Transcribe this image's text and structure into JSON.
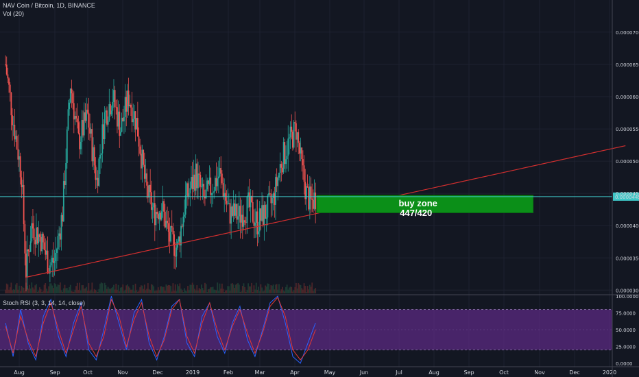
{
  "header": {
    "title": "NAV Coin / Bitcoin, 1D, BINANCE",
    "volume_indicator": "Vol (20)",
    "oscillator_label": "Stoch RSI (3, 3, 14, 14, close)"
  },
  "colors": {
    "background": "#131722",
    "up": "#26a69a",
    "down": "#ef5350",
    "trendline": "#d32f2f",
    "current_price_line": "#3ec6c6",
    "buy_zone": "#0b8f18",
    "stoch_band": "#5b2a82",
    "stoch_k": "#2962ff",
    "stoch_d": "#e53935"
  },
  "chart_data": [
    {
      "type": "candlestick",
      "title": "NAV Coin / Bitcoin, 1D, BINANCE",
      "x_tick_labels": [
        "Aug",
        "Sep",
        "Oct",
        "Nov",
        "Dec",
        "2019",
        "Feb",
        "Mar",
        "Apr",
        "May",
        "Jun",
        "Jul",
        "Aug",
        "Sep",
        "Oct",
        "Nov",
        "Dec",
        "2020"
      ],
      "y_tick_labels": [
        "0.0000300",
        "0.0000350",
        "0.0000400",
        "0.0000450",
        "0.0000500",
        "0.0000550",
        "0.0000600",
        "0.0000650",
        "0.0000700"
      ],
      "ylim": [
        2.95e-05,
        7.35e-05
      ],
      "last_price_label": "0.0000445",
      "last_price": 4.45e-05,
      "close_series": [
        {
          "date": "2018-07-20",
          "close": 6.5e-05
        },
        {
          "date": "2018-07-27",
          "close": 5.6e-05
        },
        {
          "date": "2018-08-03",
          "close": 4.8e-05
        },
        {
          "date": "2018-08-07",
          "close": 3.3e-05
        },
        {
          "date": "2018-08-12",
          "close": 4e-05
        },
        {
          "date": "2018-08-20",
          "close": 3.8e-05
        },
        {
          "date": "2018-08-27",
          "close": 3.4e-05
        },
        {
          "date": "2018-09-01",
          "close": 3.45e-05
        },
        {
          "date": "2018-09-08",
          "close": 4.2e-05
        },
        {
          "date": "2018-09-15",
          "close": 6.2e-05
        },
        {
          "date": "2018-09-22",
          "close": 5.3e-05
        },
        {
          "date": "2018-09-30",
          "close": 5.7e-05
        },
        {
          "date": "2018-10-08",
          "close": 4.7e-05
        },
        {
          "date": "2018-10-15",
          "close": 5.7e-05
        },
        {
          "date": "2018-10-22",
          "close": 6e-05
        },
        {
          "date": "2018-10-29",
          "close": 5.5e-05
        },
        {
          "date": "2018-11-05",
          "close": 6e-05
        },
        {
          "date": "2018-11-12",
          "close": 5.6e-05
        },
        {
          "date": "2018-11-20",
          "close": 4.6e-05
        },
        {
          "date": "2018-11-27",
          "close": 4.2e-05
        },
        {
          "date": "2018-12-04",
          "close": 4.3e-05
        },
        {
          "date": "2018-12-11",
          "close": 3.8e-05
        },
        {
          "date": "2018-12-18",
          "close": 3.65e-05
        },
        {
          "date": "2018-12-25",
          "close": 4.4e-05
        },
        {
          "date": "2019-01-03",
          "close": 4.8e-05
        },
        {
          "date": "2019-01-10",
          "close": 4.4e-05
        },
        {
          "date": "2019-01-17",
          "close": 4.6e-05
        },
        {
          "date": "2019-01-24",
          "close": 4.8e-05
        },
        {
          "date": "2019-02-01",
          "close": 4.2e-05
        },
        {
          "date": "2019-02-10",
          "close": 4.15e-05
        },
        {
          "date": "2019-02-18",
          "close": 4.3e-05
        },
        {
          "date": "2019-02-26",
          "close": 4.05e-05
        },
        {
          "date": "2019-03-05",
          "close": 4.2e-05
        },
        {
          "date": "2019-03-12",
          "close": 4.4e-05
        },
        {
          "date": "2019-03-19",
          "close": 5e-05
        },
        {
          "date": "2019-03-26",
          "close": 5.3e-05
        },
        {
          "date": "2019-04-01",
          "close": 5.5e-05
        },
        {
          "date": "2019-04-05",
          "close": 5e-05
        },
        {
          "date": "2019-04-10",
          "close": 4.5e-05
        },
        {
          "date": "2019-04-14",
          "close": 4.35e-05
        },
        {
          "date": "2019-04-18",
          "close": 4.45e-05
        }
      ]
    },
    {
      "type": "line",
      "title": "Stoch RSI (3, 3, 14, 14, close)",
      "y_tick_labels": [
        "0.0000",
        "25.0000",
        "50.0000",
        "75.0000",
        "100.0000"
      ],
      "ylim": [
        0,
        100
      ],
      "band": [
        20,
        80
      ],
      "series": [
        {
          "values": [
            60,
            10,
            80,
            30,
            5,
            70,
            95,
            40,
            10,
            60,
            90,
            20,
            5,
            50,
            100,
            60,
            20,
            75,
            95,
            30,
            5,
            40,
            85,
            95,
            30,
            10,
            70,
            90,
            40,
            15,
            60,
            85,
            35,
            10,
            50,
            90,
            100,
            60,
            10,
            0,
            30,
            60
          ]
        },
        {
          "values": [
            55,
            15,
            70,
            35,
            10,
            60,
            90,
            50,
            15,
            50,
            85,
            30,
            10,
            40,
            95,
            70,
            25,
            65,
            90,
            40,
            10,
            35,
            80,
            95,
            40,
            15,
            60,
            90,
            50,
            20,
            55,
            80,
            45,
            15,
            45,
            85,
            98,
            70,
            20,
            5,
            20,
            50
          ]
        }
      ]
    }
  ],
  "annotations": {
    "buy_zone_line1": "buy zone",
    "buy_zone_line2": "447/420",
    "buy_zone_top": 4.47e-05,
    "buy_zone_bottom": 4.2e-05,
    "buy_zone_start": "2019-04-19",
    "buy_zone_end": "2019-10-26",
    "trendline_start": {
      "date": "2018-08-07",
      "value": 3.2e-05
    },
    "trendline_end": {
      "date": "2020-01-15",
      "value": 5.24e-05
    }
  }
}
